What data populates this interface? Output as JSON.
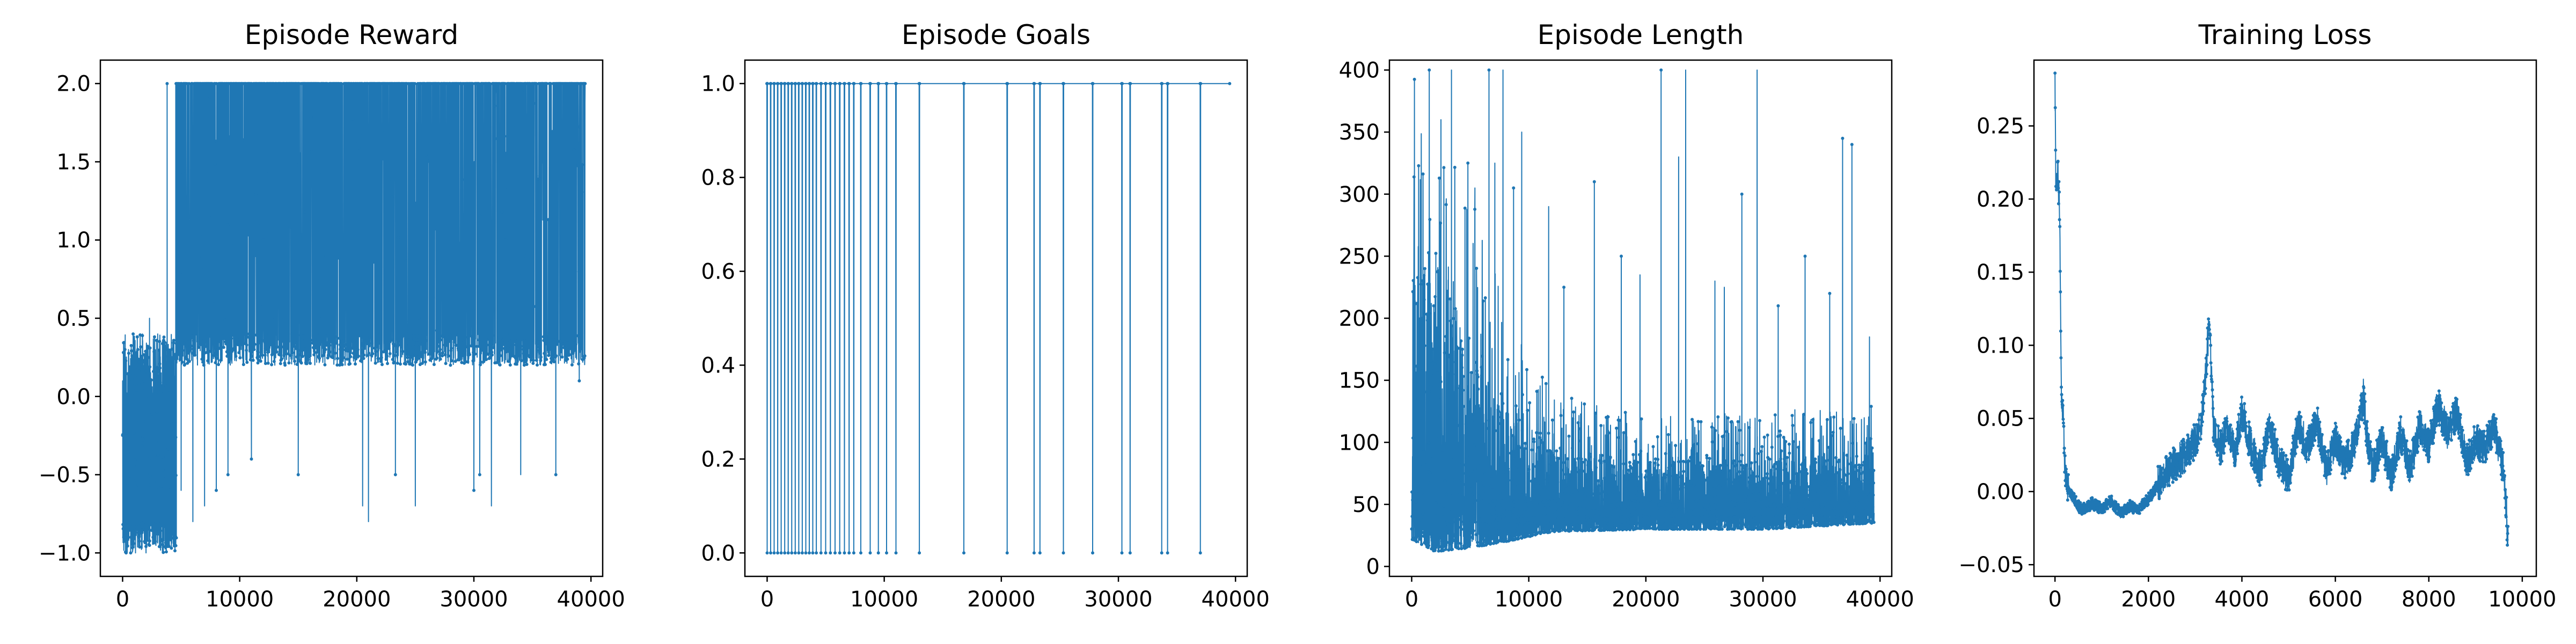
{
  "chart_data": [
    {
      "type": "line",
      "title": "Episode Reward",
      "xlabel": "",
      "ylabel": "",
      "xlim": [
        -1900,
        41000
      ],
      "ylim": [
        -1.15,
        2.15
      ],
      "xticks": [
        0,
        10000,
        20000,
        30000,
        40000
      ],
      "yticks": [
        -1.0,
        -0.5,
        0.0,
        0.5,
        1.0,
        1.5,
        2.0
      ],
      "ytick_labels": [
        "−1.0",
        "−0.5",
        "0.0",
        "0.5",
        "1.0",
        "1.5",
        "2.0"
      ],
      "grid": false,
      "color": "#1f77b4",
      "series": [
        {
          "x": [
            0,
            100,
            200,
            300,
            500,
            700,
            900,
            1100,
            1300,
            1500,
            1700,
            2000,
            2300,
            2600,
            3000,
            3400,
            3800,
            4200,
            4600,
            5000,
            5500,
            6000,
            6500,
            7000,
            7500,
            8000,
            8500,
            9000,
            10000,
            11000,
            12000,
            13000,
            14000,
            15000,
            17000,
            19000,
            20500,
            21000,
            23000,
            23300,
            25000,
            26000,
            28000,
            30000,
            30500,
            31500,
            33000,
            34000,
            36000,
            37000,
            38000,
            39000,
            39500
          ],
          "y": [
            0.1,
            -0.9,
            0.3,
            -1.0,
            0.3,
            -0.9,
            0.4,
            -1.0,
            0.3,
            -0.9,
            0.4,
            -1.0,
            0.5,
            -0.9,
            0.4,
            -1.0,
            2.0,
            -0.8,
            2.0,
            -0.6,
            2.0,
            -0.8,
            2.0,
            -0.7,
            2.0,
            -0.6,
            2.0,
            -0.5,
            2.0,
            -0.4,
            2.0,
            0.2,
            2.0,
            -0.5,
            2.0,
            0.2,
            -0.7,
            -0.8,
            2.0,
            -0.5,
            -0.7,
            2.0,
            0.2,
            -0.6,
            -0.5,
            -0.7,
            2.0,
            -0.5,
            0.2,
            -0.5,
            2.0,
            0.1,
            2.0
          ],
          "dense_band": {
            "x": [
              4500,
              39500
            ],
            "y": [
              0.2,
              2.0
            ]
          }
        }
      ]
    },
    {
      "type": "line",
      "title": "Episode Goals",
      "xlabel": "",
      "ylabel": "",
      "xlim": [
        -1900,
        41000
      ],
      "ylim": [
        -0.05,
        1.05
      ],
      "xticks": [
        0,
        10000,
        20000,
        30000,
        40000
      ],
      "yticks": [
        0.0,
        0.2,
        0.4,
        0.6,
        0.8,
        1.0
      ],
      "ytick_labels": [
        "0.0",
        "0.2",
        "0.4",
        "0.6",
        "0.8",
        "1.0"
      ],
      "grid": false,
      "color": "#1f77b4",
      "series": [
        {
          "zero_at_x": [
            0,
            300,
            600,
            900,
            1200,
            1500,
            1800,
            2100,
            2400,
            2700,
            3000,
            3300,
            3600,
            3900,
            4200,
            4600,
            5000,
            5400,
            5800,
            6200,
            6600,
            7000,
            7400,
            8000,
            8800,
            9500,
            10200,
            11000,
            13000,
            16800,
            20500,
            22800,
            23300,
            25300,
            27800,
            30300,
            31000,
            33700,
            34200,
            37000
          ]
        }
      ]
    },
    {
      "type": "line",
      "title": "Episode Length",
      "xlabel": "",
      "ylabel": "",
      "xlim": [
        -1900,
        41000
      ],
      "ylim": [
        -8,
        408
      ],
      "xticks": [
        0,
        10000,
        20000,
        30000,
        40000
      ],
      "yticks": [
        0,
        50,
        100,
        150,
        200,
        250,
        300,
        350,
        400
      ],
      "ytick_labels": [
        "0",
        "50",
        "100",
        "150",
        "200",
        "250",
        "300",
        "350",
        "400"
      ],
      "grid": false,
      "color": "#1f77b4",
      "series": [
        {
          "envelope_x": [
            0,
            2000,
            5000,
            8000,
            12000,
            20000,
            30000,
            39500
          ],
          "envelope_low": [
            22,
            12,
            15,
            20,
            28,
            30,
            30,
            35
          ],
          "envelope_high": [
            400,
            400,
            300,
            210,
            140,
            120,
            125,
            130
          ],
          "spikes_x": [
            1500,
            2500,
            3400,
            4800,
            5400,
            6600,
            7100,
            7800,
            8700,
            9400,
            11700,
            13000,
            15600,
            17900,
            19500,
            21300,
            22800,
            23400,
            25900,
            26700,
            28200,
            29500,
            31300,
            33600,
            35700,
            36800,
            37600,
            39100
          ],
          "spikes_y": [
            400,
            360,
            400,
            325,
            305,
            400,
            325,
            400,
            305,
            350,
            290,
            225,
            310,
            250,
            235,
            400,
            330,
            400,
            230,
            225,
            300,
            400,
            210,
            250,
            220,
            345,
            340,
            185
          ]
        }
      ]
    },
    {
      "type": "line",
      "title": "Training Loss",
      "xlabel": "",
      "ylabel": "",
      "xlim": [
        -450,
        10300
      ],
      "ylim": [
        -0.058,
        0.295
      ],
      "xticks": [
        0,
        2000,
        4000,
        6000,
        8000,
        10000
      ],
      "yticks": [
        -0.05,
        0.0,
        0.05,
        0.1,
        0.15,
        0.2,
        0.25
      ],
      "ytick_labels": [
        "−0.05",
        "0.00",
        "0.05",
        "0.10",
        "0.15",
        "0.20",
        "0.25"
      ],
      "grid": false,
      "color": "#1f77b4",
      "series": [
        {
          "x": [
            0,
            20,
            60,
            100,
            140,
            180,
            220,
            260,
            300,
            400,
            500,
            600,
            800,
            1000,
            1200,
            1400,
            1600,
            1800,
            2000,
            2200,
            2400,
            2600,
            2800,
            3000,
            3150,
            3300,
            3400,
            3550,
            3700,
            3850,
            4000,
            4200,
            4400,
            4600,
            4800,
            5000,
            5200,
            5400,
            5600,
            5800,
            6000,
            6200,
            6400,
            6600,
            6700,
            6800,
            7000,
            7200,
            7400,
            7600,
            7800,
            8000,
            8200,
            8400,
            8600,
            8800,
            9000,
            9200,
            9400,
            9600,
            9700
          ],
          "y": [
            0.28,
            0.2,
            0.22,
            0.19,
            0.06,
            0.05,
            0.01,
            0.005,
            0.0,
            -0.005,
            -0.01,
            -0.012,
            -0.008,
            -0.012,
            -0.006,
            -0.015,
            -0.01,
            -0.012,
            -0.005,
            0.005,
            0.015,
            0.02,
            0.025,
            0.035,
            0.05,
            0.115,
            0.04,
            0.03,
            0.045,
            0.025,
            0.055,
            0.03,
            0.015,
            0.045,
            0.02,
            0.01,
            0.045,
            0.03,
            0.05,
            0.015,
            0.035,
            0.02,
            0.03,
            0.065,
            0.03,
            0.015,
            0.035,
            0.01,
            0.04,
            0.015,
            0.045,
            0.03,
            0.06,
            0.04,
            0.055,
            0.02,
            0.035,
            0.03,
            0.045,
            0.015,
            -0.035
          ]
        }
      ]
    }
  ]
}
